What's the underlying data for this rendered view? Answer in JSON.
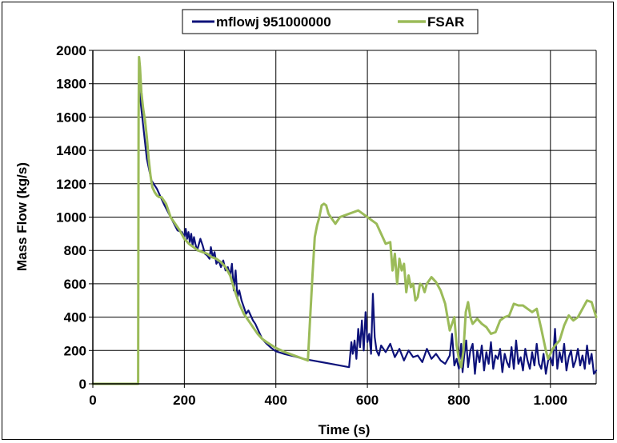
{
  "chart_data": {
    "type": "line",
    "title": "",
    "xlabel": "Time (s)",
    "ylabel": "Mass Flow (kg/s)",
    "xlim": [
      0,
      1100
    ],
    "ylim": [
      0,
      2000
    ],
    "x_ticks": [
      0,
      200,
      400,
      600,
      800,
      1000
    ],
    "x_tick_labels": [
      "0",
      "200",
      "400",
      "600",
      "800",
      "1.000"
    ],
    "y_ticks": [
      0,
      200,
      400,
      600,
      800,
      1000,
      1200,
      1400,
      1600,
      1800,
      2000
    ],
    "y_tick_labels": [
      "0",
      "200",
      "400",
      "600",
      "800",
      "1000",
      "1200",
      "1400",
      "1600",
      "1800",
      "2000"
    ],
    "grid": true,
    "legend_position": "top-center",
    "series": [
      {
        "name": "mflowj 951000000",
        "color": "#0d127a",
        "x": [
          0,
          99,
          100,
          101,
          104,
          110,
          118,
          128,
          140,
          155,
          170,
          185,
          195,
          200,
          203,
          206,
          209,
          212,
          215,
          218,
          221,
          224,
          228,
          235,
          240,
          245,
          250,
          255,
          258,
          262,
          266,
          270,
          275,
          280,
          285,
          290,
          295,
          300,
          304,
          308,
          312,
          316,
          320,
          325,
          330,
          335,
          340,
          345,
          350,
          355,
          360,
          365,
          370,
          380,
          390,
          400,
          420,
          440,
          460,
          480,
          500,
          520,
          540,
          560,
          565,
          568,
          572,
          576,
          580,
          584,
          588,
          592,
          596,
          600,
          604,
          608,
          612,
          616,
          620,
          625,
          630,
          640,
          650,
          660,
          670,
          680,
          690,
          700,
          710,
          720,
          730,
          740,
          750,
          760,
          770,
          780,
          785,
          790,
          795,
          800,
          805,
          808,
          812,
          816,
          820,
          825,
          830,
          835,
          840,
          845,
          850,
          855,
          860,
          865,
          870,
          875,
          880,
          885,
          890,
          895,
          900,
          905,
          910,
          915,
          920,
          925,
          930,
          935,
          940,
          945,
          950,
          955,
          960,
          965,
          970,
          975,
          980,
          985,
          990,
          995,
          1000,
          1005,
          1010,
          1015,
          1020,
          1025,
          1030,
          1035,
          1040,
          1045,
          1050,
          1055,
          1060,
          1065,
          1070,
          1075,
          1080,
          1085,
          1090,
          1095,
          1100
        ],
        "values": [
          0,
          0,
          1650,
          1770,
          1700,
          1550,
          1350,
          1220,
          1170,
          1080,
          1000,
          920,
          910,
          880,
          930,
          870,
          910,
          850,
          900,
          830,
          880,
          840,
          800,
          870,
          830,
          780,
          770,
          750,
          820,
          760,
          790,
          720,
          740,
          700,
          740,
          680,
          700,
          650,
          720,
          560,
          680,
          520,
          560,
          500,
          460,
          420,
          440,
          410,
          380,
          360,
          330,
          300,
          270,
          240,
          215,
          195,
          178,
          165,
          150,
          140,
          130,
          120,
          110,
          100,
          250,
          180,
          260,
          150,
          330,
          220,
          380,
          200,
          430,
          250,
          300,
          180,
          540,
          280,
          200,
          170,
          230,
          190,
          240,
          160,
          210,
          140,
          200,
          160,
          170,
          130,
          210,
          150,
          180,
          140,
          120,
          170,
          300,
          110,
          150,
          90,
          240,
          70,
          180,
          260,
          100,
          200,
          240,
          60,
          200,
          130,
          230,
          80,
          190,
          120,
          250,
          90,
          170,
          150,
          210,
          70,
          180,
          130,
          100,
          220,
          90,
          260,
          120,
          160,
          80,
          210,
          140,
          90,
          190,
          110,
          240,
          120,
          90,
          180,
          60,
          140,
          160,
          110,
          330,
          90,
          190,
          130,
          240,
          80,
          160,
          200,
          100,
          140,
          210,
          110,
          170,
          90,
          230,
          120,
          180,
          60,
          80
        ],
        "stroke_width": 2.2
      },
      {
        "name": "FSAR",
        "color": "#9bbb59",
        "x": [
          0,
          99,
          100,
          101,
          103,
          106,
          110,
          114,
          118,
          122,
          126,
          130,
          135,
          140,
          145,
          150,
          160,
          170,
          180,
          190,
          200,
          210,
          220,
          230,
          240,
          250,
          260,
          270,
          280,
          290,
          300,
          310,
          320,
          330,
          340,
          350,
          360,
          370,
          380,
          400,
          420,
          440,
          460,
          470,
          475,
          480,
          485,
          490,
          495,
          500,
          505,
          510,
          515,
          520,
          530,
          540,
          550,
          560,
          570,
          580,
          590,
          600,
          610,
          620,
          630,
          640,
          650,
          655,
          660,
          665,
          670,
          675,
          680,
          685,
          690,
          695,
          700,
          705,
          710,
          715,
          720,
          725,
          730,
          740,
          750,
          760,
          770,
          780,
          790,
          795,
          800,
          805,
          810,
          815,
          820,
          825,
          830,
          840,
          850,
          860,
          870,
          880,
          890,
          900,
          910,
          920,
          930,
          940,
          950,
          960,
          970,
          980,
          990,
          995,
          1000,
          1005,
          1010,
          1020,
          1030,
          1040,
          1050,
          1060,
          1070,
          1080,
          1090,
          1100
        ],
        "values": [
          0,
          0,
          1600,
          1960,
          1900,
          1750,
          1650,
          1580,
          1480,
          1350,
          1250,
          1180,
          1150,
          1130,
          1120,
          1120,
          1080,
          1000,
          960,
          920,
          870,
          840,
          820,
          800,
          790,
          780,
          760,
          750,
          730,
          700,
          650,
          560,
          480,
          420,
          380,
          340,
          300,
          270,
          250,
          215,
          190,
          170,
          150,
          140,
          400,
          650,
          880,
          950,
          1000,
          1070,
          1080,
          1070,
          1020,
          1000,
          960,
          1000,
          1010,
          1020,
          1030,
          1040,
          1020,
          1000,
          980,
          960,
          900,
          840,
          850,
          680,
          780,
          600,
          750,
          680,
          720,
          550,
          650,
          580,
          600,
          500,
          520,
          600,
          590,
          550,
          600,
          640,
          610,
          560,
          480,
          320,
          400,
          230,
          150,
          100,
          200,
          430,
          490,
          400,
          360,
          390,
          360,
          340,
          300,
          310,
          380,
          400,
          410,
          480,
          470,
          470,
          450,
          430,
          450,
          330,
          200,
          150,
          180,
          210,
          230,
          260,
          350,
          410,
          380,
          400,
          450,
          500,
          490,
          400
        ],
        "stroke_width": 3
      }
    ]
  }
}
